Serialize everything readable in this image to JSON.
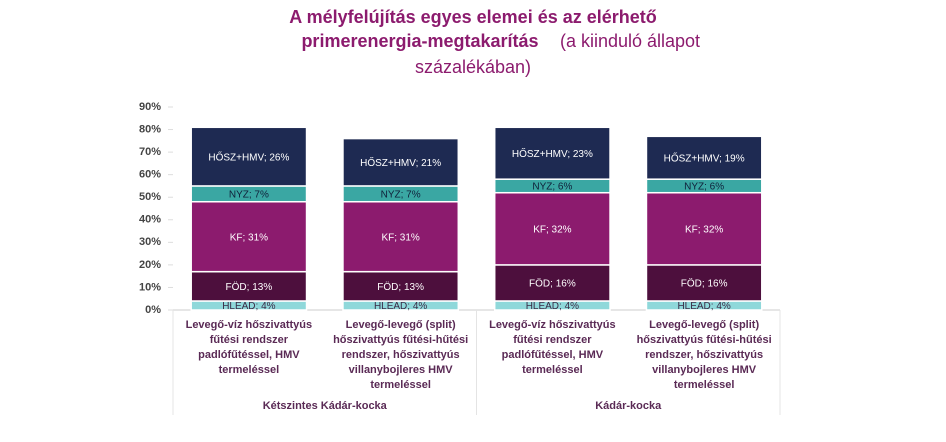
{
  "chart_data": {
    "type": "stacked_bar",
    "title": [
      "A mélyfelújítás egyes elemei és az elérhető primerenergia-megtakarítás",
      "(a kiinduló állapot százalékában)"
    ],
    "categories": [
      "Levegő-víz hőszivattyús fűtési rendszer padlófűtéssel, HMV termeléssel",
      "Levegő-levegő (split) hőszivattyús fűtési-hűtési rendszer, hőszivattyús villanybojleres HMV termeléssel",
      "Levegő-víz hőszivattyús fűtési rendszer padlófűtéssel, HMV termeléssel",
      "Levegő-levegő (split) hőszivattyús fűtési-hűtési rendszer, hőszivattyús villanybojleres HMV termeléssel"
    ],
    "groups": [
      "Kétszintes Kádár-kocka",
      "Kádár-kocka"
    ],
    "series": [
      {
        "name": "HLEAD",
        "color": "#8fd8da",
        "text_color": "#3a2a45",
        "values": [
          4,
          4,
          4,
          4
        ],
        "value_labels": [
          "HLEAD; 4%",
          "HLEAD; 4%",
          "HLEAD; 4%",
          "HLEAD; 4%"
        ]
      },
      {
        "name": "FÖD",
        "color": "#4d0f3d",
        "text_color": "#ffffff",
        "values": [
          13,
          13,
          16,
          16
        ],
        "value_labels": [
          "FÖD; 13%",
          "FÖD; 13%",
          "FÖD; 16%",
          "FÖD; 16%"
        ]
      },
      {
        "name": "KF",
        "color": "#8c1b6e",
        "text_color": "#ffffff",
        "values": [
          31,
          31,
          32,
          32
        ],
        "value_labels": [
          "KF; 31%",
          "KF; 31%",
          "KF; 32%",
          "KF; 32%"
        ]
      },
      {
        "name": "NYZ",
        "color": "#3aa7a3",
        "text_color": "#10203a",
        "values": [
          7,
          7,
          6,
          6
        ],
        "value_labels": [
          "NYZ; 7%",
          "NYZ; 7%",
          "NYZ; 6%",
          "NYZ; 6%"
        ]
      },
      {
        "name": "HŐSZ+HMV",
        "color": "#1e2a52",
        "text_color": "#ffffff",
        "values": [
          26,
          21,
          23,
          19
        ],
        "value_labels": [
          "HŐSZ+HMV; 26%",
          "HŐSZ+HMV; 21%",
          "HŐSZ+HMV; 23%",
          "HŐSZ+HMV; 19%"
        ]
      }
    ],
    "ylim": [
      0,
      90
    ],
    "yticks": [
      {
        "value": 0,
        "label": "0%"
      },
      {
        "value": 10,
        "label": "10%"
      },
      {
        "value": 20,
        "label": "20%"
      },
      {
        "value": 30,
        "label": "30%"
      },
      {
        "value": 40,
        "label": "40%"
      },
      {
        "value": 50,
        "label": "50%"
      },
      {
        "value": 60,
        "label": "60%"
      },
      {
        "value": 70,
        "label": "70%"
      },
      {
        "value": 80,
        "label": "80%"
      },
      {
        "value": 90,
        "label": "90%"
      }
    ],
    "grid": false,
    "title_color": "#8c1b6e"
  }
}
